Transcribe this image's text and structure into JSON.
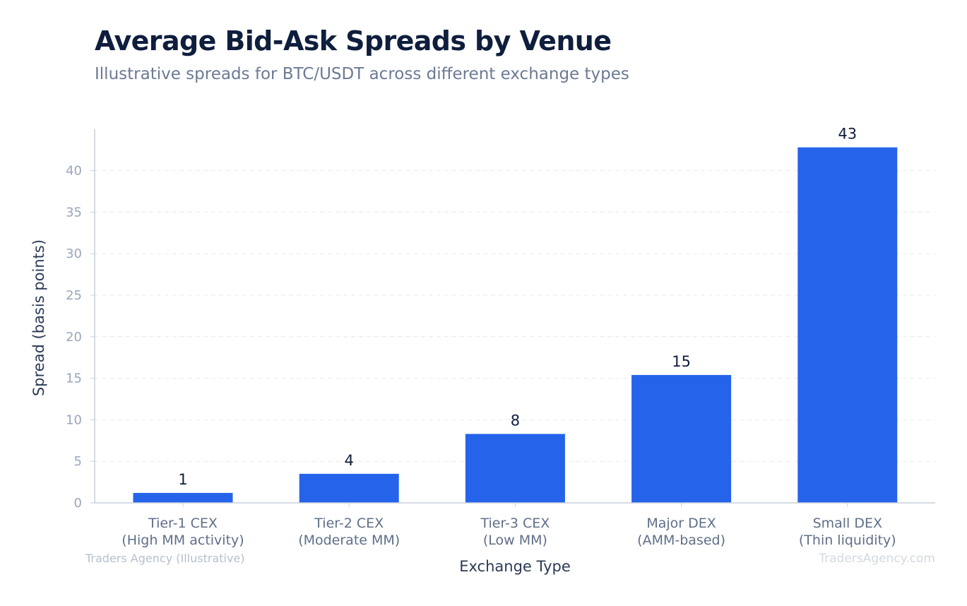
{
  "header": {
    "title": "Average Bid-Ask Spreads by Venue",
    "subtitle": "Illustrative spreads for BTC/USDT across different exchange types"
  },
  "footer": {
    "source_note": "Traders Agency (Illustrative)",
    "brand": "TradersAgency.com"
  },
  "colors": {
    "bar": "#2563eb",
    "grid": "#e5e9f0",
    "axis": "#c9d0db"
  },
  "chart_data": {
    "type": "bar",
    "title": "Average Bid-Ask Spreads by Venue",
    "subtitle": "Illustrative spreads for BTC/USDT across different exchange types",
    "xlabel": "Exchange Type",
    "ylabel": "Spread (basis points)",
    "categories": [
      [
        "Tier-1 CEX",
        "(High MM activity)"
      ],
      [
        "Tier-2 CEX",
        "(Moderate MM)"
      ],
      [
        "Tier-3 CEX",
        "(Low MM)"
      ],
      [
        "Major DEX",
        "(AMM-based)"
      ],
      [
        "Small DEX",
        "(Thin liquidity)"
      ]
    ],
    "values": [
      1.2,
      3.5,
      8.3,
      15.4,
      42.8
    ],
    "value_labels": [
      "1",
      "4",
      "8",
      "15",
      "43"
    ],
    "ylim": [
      0,
      45
    ],
    "yticks": [
      0,
      5,
      10,
      15,
      20,
      25,
      30,
      35,
      40
    ],
    "grid": true,
    "legend": "none"
  }
}
